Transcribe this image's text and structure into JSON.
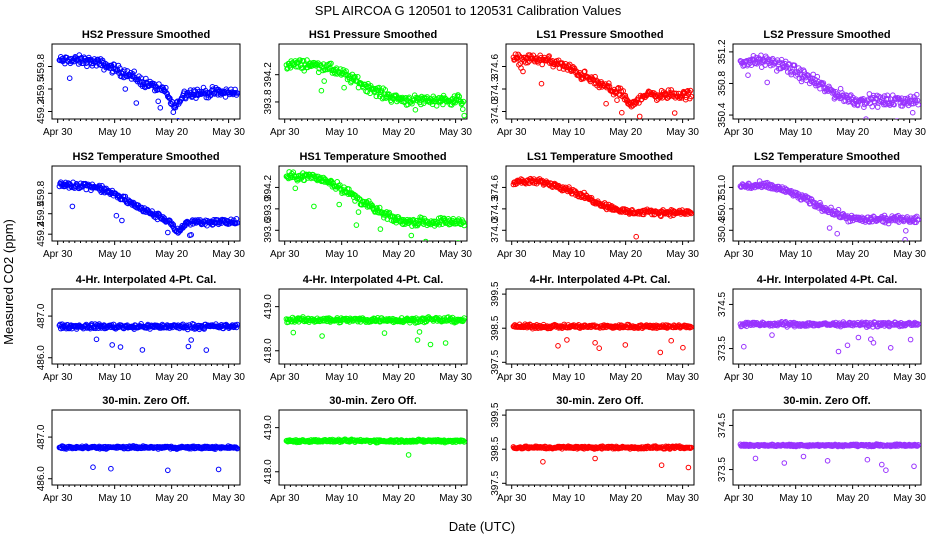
{
  "figure": {
    "title": "SPL   AIRCOA G   120501 to 120531   Calibration Values",
    "xlabel": "Date (UTC)",
    "ylabel": "Measured CO2 (ppm)"
  },
  "chart_data": {
    "type": "scatter",
    "x_ticks": [
      "Apr 30",
      "May 10",
      "May 20",
      "May 30"
    ],
    "x_tick_days": [
      0,
      10,
      20,
      30
    ],
    "xlim_days": [
      -1,
      32
    ],
    "series_colors": {
      "HS2": "#0000ff",
      "HS1": "#00ff00",
      "LS1": "#ff0000",
      "LS2": "#9933ff"
    },
    "row_titles": {
      "pressure": "Pressure Smoothed",
      "temperature": "Temperature Smoothed",
      "interp": "4-Hr. Interpolated 4-Pt. Cal.",
      "zero": "30-min. Zero Off."
    },
    "panels": [
      {
        "series": "HS2",
        "title": "HS2 Pressure Smoothed",
        "ylim": [
          459.1,
          460.1
        ],
        "yticks": [
          "459.2",
          "459.5",
          "459.8"
        ],
        "level": {
          "type": "decline",
          "start": 459.88,
          "end": 459.45,
          "dip_day": 20.5,
          "dip": 0.2
        },
        "noise": 0.08
      },
      {
        "series": "HS1",
        "title": "HS1 Pressure Smoothed",
        "ylim": [
          393.55,
          394.65
        ],
        "yticks": [
          "393.8",
          "394.2"
        ],
        "level": {
          "type": "decline",
          "start": 394.35,
          "end": 393.83,
          "dip_day": 0,
          "dip": 0
        },
        "noise": 0.09
      },
      {
        "series": "LS1",
        "title": "LS1 Pressure Smoothed",
        "ylim": [
          373.9,
          374.9
        ],
        "yticks": [
          "374.0",
          "374.3",
          "374.6"
        ],
        "level": {
          "type": "decline",
          "start": 374.7,
          "end": 374.22,
          "dip_day": 21,
          "dip": 0.15
        },
        "noise": 0.08
      },
      {
        "series": "LS2",
        "title": "LS2 Pressure Smoothed",
        "ylim": [
          350.35,
          351.3
        ],
        "yticks": [
          "350.4",
          "350.8",
          "351.2"
        ],
        "level": {
          "type": "decline",
          "start": 351.08,
          "end": 350.58,
          "dip_day": 0,
          "dip": 0
        },
        "noise": 0.09
      },
      {
        "series": "HS2",
        "title": "HS2 Temperature Smoothed",
        "ylim": [
          459.1,
          460.2
        ],
        "yticks": [
          "459.2",
          "459.5",
          "459.8"
        ],
        "level": {
          "type": "decline",
          "start": 459.92,
          "end": 459.38,
          "dip_day": 21,
          "dip": 0.15
        },
        "noise": 0.06
      },
      {
        "series": "HS1",
        "title": "HS1 Temperature Smoothed",
        "ylim": [
          393.45,
          394.5
        ],
        "yticks": [
          "393.6",
          "393.9",
          "394.2"
        ],
        "level": {
          "type": "decline",
          "start": 394.35,
          "end": 393.72,
          "dip_day": 0,
          "dip": 0
        },
        "noise": 0.07
      },
      {
        "series": "LS1",
        "title": "LS1 Temperature Smoothed",
        "ylim": [
          373.85,
          374.9
        ],
        "yticks": [
          "374.0",
          "374.3",
          "374.6"
        ],
        "level": {
          "type": "decline",
          "start": 374.68,
          "end": 374.25,
          "dip_day": 0,
          "dip": 0
        },
        "noise": 0.05
      },
      {
        "series": "LS2",
        "title": "LS2 Temperature Smoothed",
        "ylim": [
          350.25,
          351.3
        ],
        "yticks": [
          "350.4",
          "350.7",
          "351.0"
        ],
        "level": {
          "type": "decline",
          "start": 351.02,
          "end": 350.55,
          "dip_day": 0,
          "dip": 0
        },
        "noise": 0.06
      },
      {
        "series": "HS2",
        "title": "4-Hr. Interpolated 4-Pt. Cal.",
        "ylim": [
          485.85,
          487.65
        ],
        "yticks": [
          "486.0",
          "487.0"
        ],
        "level": {
          "type": "flat",
          "value": 486.75
        },
        "noise": 0.07
      },
      {
        "series": "HS1",
        "title": "4-Hr. Interpolated 4-Pt. Cal.",
        "ylim": [
          417.7,
          419.4
        ],
        "yticks": [
          "418.0",
          "419.0"
        ],
        "level": {
          "type": "flat",
          "value": 418.7
        },
        "noise": 0.07
      },
      {
        "series": "LS1",
        "title": "4-Hr. Interpolated 4-Pt. Cal.",
        "ylim": [
          397.45,
          399.65
        ],
        "yticks": [
          "397.5",
          "398.5",
          "399.5"
        ],
        "level": {
          "type": "flat",
          "value": 398.55
        },
        "noise": 0.07
      },
      {
        "series": "LS2",
        "title": "4-Hr. Interpolated 4-Pt. Cal.",
        "ylim": [
          373.15,
          374.85
        ],
        "yticks": [
          "373.5",
          "374.5"
        ],
        "level": {
          "type": "flat",
          "value": 374.05
        },
        "noise": 0.06
      },
      {
        "series": "HS2",
        "title": "30-min. Zero Off.",
        "ylim": [
          485.85,
          487.65
        ],
        "yticks": [
          "486.0",
          "487.0"
        ],
        "level": {
          "type": "flat",
          "value": 486.75
        },
        "noise": 0.04
      },
      {
        "series": "HS1",
        "title": "30-min. Zero Off.",
        "ylim": [
          417.7,
          419.4
        ],
        "yticks": [
          "418.0",
          "419.0"
        ],
        "level": {
          "type": "flat",
          "value": 418.7
        },
        "noise": 0.04
      },
      {
        "series": "LS1",
        "title": "30-min. Zero Off.",
        "ylim": [
          397.45,
          399.65
        ],
        "yticks": [
          "397.5",
          "398.5",
          "399.5"
        ],
        "level": {
          "type": "flat",
          "value": 398.55
        },
        "noise": 0.05
      },
      {
        "series": "LS2",
        "title": "30-min. Zero Off.",
        "ylim": [
          373.15,
          374.85
        ],
        "yticks": [
          "373.5",
          "374.5"
        ],
        "level": {
          "type": "flat",
          "value": 374.05
        },
        "noise": 0.03
      }
    ]
  }
}
